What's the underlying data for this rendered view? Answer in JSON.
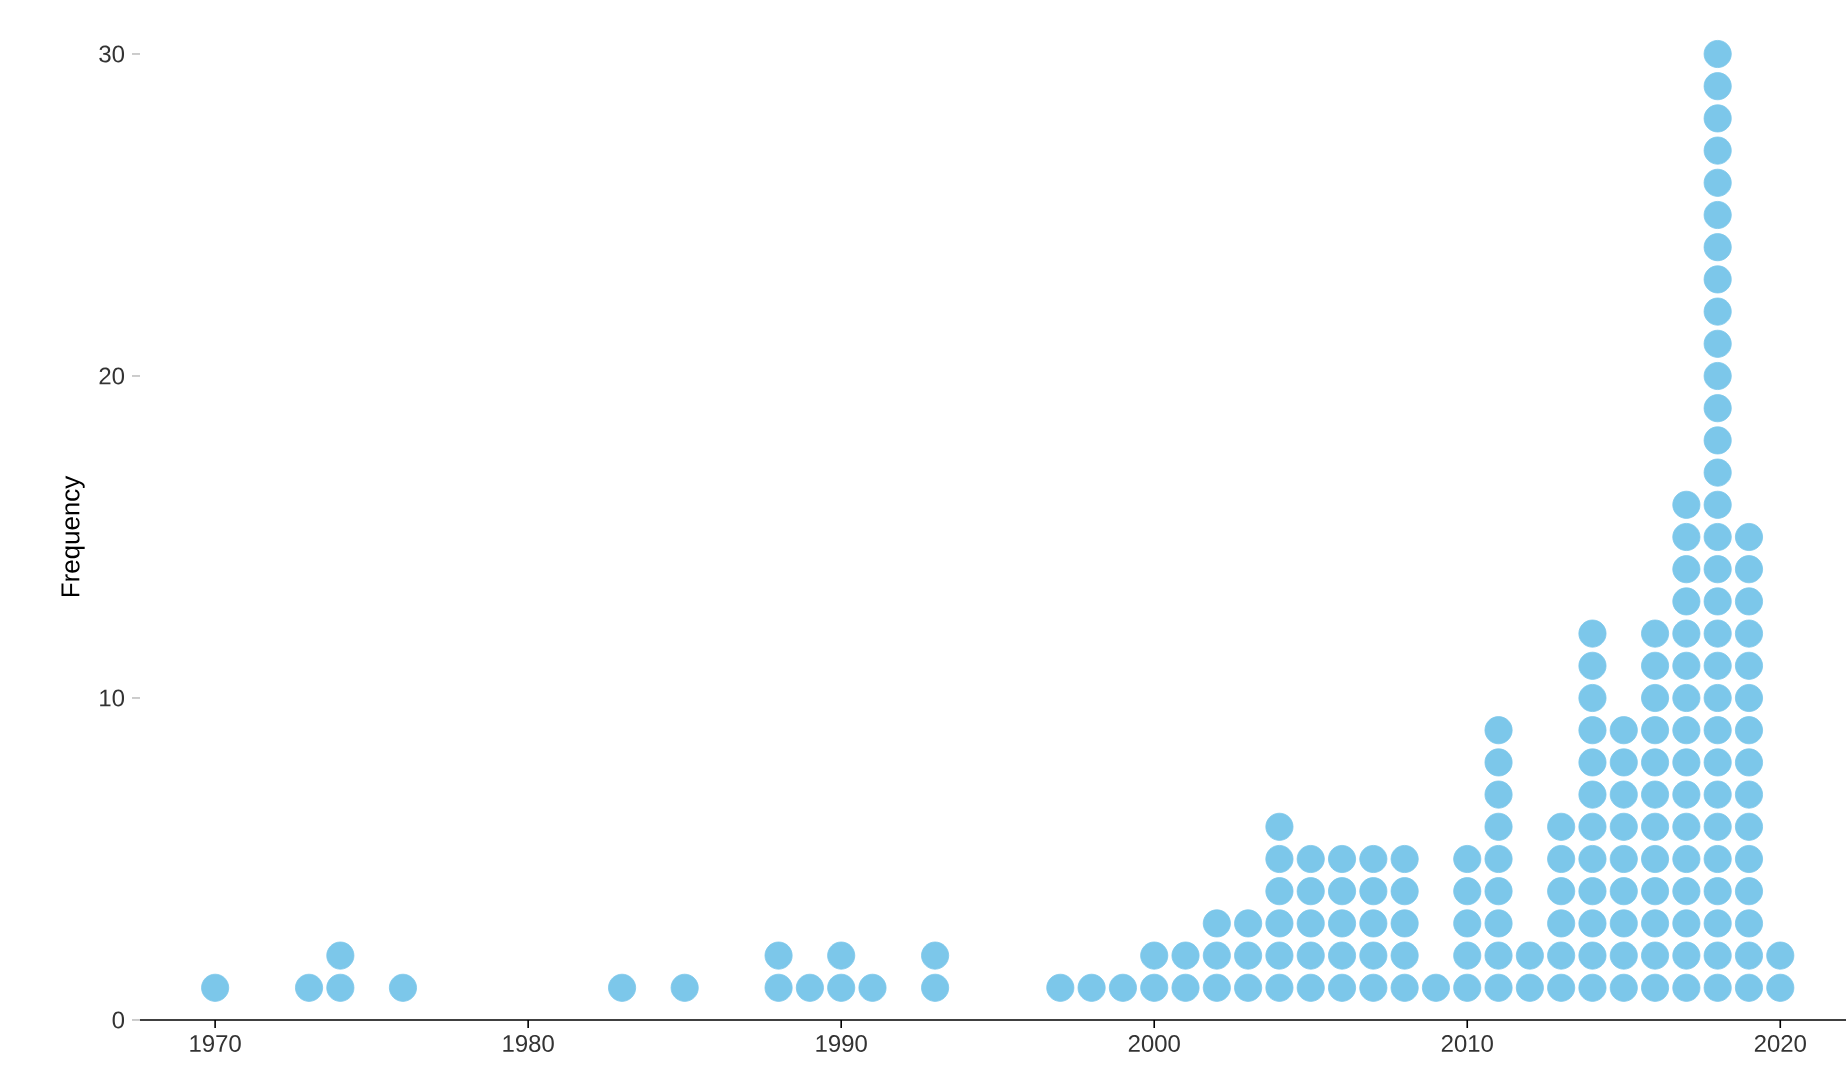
{
  "chart_data": {
    "type": "scatter",
    "ylabel": "Frequency",
    "color": "#7cc7ea",
    "marker": "circle",
    "grid": false,
    "xlim": [
      1967.6,
      2022.1
    ],
    "ylim": [
      0,
      30
    ],
    "xticks": [
      1970,
      1980,
      1990,
      2000,
      2010,
      2020
    ],
    "yticks": [
      0,
      10,
      20,
      30
    ],
    "x": [
      1970,
      1973,
      1974,
      1974,
      1976,
      1983,
      1985,
      1988,
      1988,
      1989,
      1990,
      1990,
      1991,
      1993,
      1993,
      1997,
      1998,
      1999,
      2000,
      2000,
      2001,
      2001,
      2002,
      2002,
      2002,
      2003,
      2003,
      2003,
      2004,
      2004,
      2004,
      2004,
      2004,
      2004,
      2005,
      2005,
      2005,
      2005,
      2005,
      2006,
      2006,
      2006,
      2006,
      2006,
      2007,
      2007,
      2007,
      2007,
      2007,
      2008,
      2008,
      2008,
      2008,
      2008,
      2009,
      2010,
      2010,
      2010,
      2010,
      2010,
      2011,
      2011,
      2011,
      2011,
      2011,
      2011,
      2011,
      2011,
      2011,
      2012,
      2012,
      2013,
      2013,
      2013,
      2013,
      2013,
      2013,
      2014,
      2014,
      2014,
      2014,
      2014,
      2014,
      2014,
      2014,
      2014,
      2014,
      2014,
      2014,
      2015,
      2015,
      2015,
      2015,
      2015,
      2015,
      2015,
      2015,
      2015,
      2016,
      2016,
      2016,
      2016,
      2016,
      2016,
      2016,
      2016,
      2016,
      2016,
      2016,
      2016,
      2017,
      2017,
      2017,
      2017,
      2017,
      2017,
      2017,
      2017,
      2017,
      2017,
      2017,
      2017,
      2017,
      2017,
      2017,
      2017,
      2018,
      2018,
      2018,
      2018,
      2018,
      2018,
      2018,
      2018,
      2018,
      2018,
      2018,
      2018,
      2018,
      2018,
      2018,
      2018,
      2018,
      2018,
      2018,
      2018,
      2018,
      2018,
      2018,
      2018,
      2018,
      2018,
      2018,
      2018,
      2018,
      2018,
      2019,
      2019,
      2019,
      2019,
      2019,
      2019,
      2019,
      2019,
      2019,
      2019,
      2019,
      2019,
      2019,
      2019,
      2019,
      2020,
      2020
    ],
    "values": [
      1,
      1,
      1,
      2,
      1,
      1,
      1,
      1,
      2,
      1,
      1,
      2,
      1,
      1,
      2,
      1,
      1,
      1,
      1,
      2,
      1,
      2,
      1,
      2,
      3,
      1,
      2,
      3,
      1,
      2,
      3,
      4,
      5,
      6,
      1,
      2,
      3,
      4,
      5,
      1,
      2,
      3,
      4,
      5,
      1,
      2,
      3,
      4,
      5,
      1,
      2,
      3,
      4,
      5,
      1,
      1,
      2,
      3,
      4,
      5,
      1,
      2,
      3,
      4,
      5,
      6,
      7,
      8,
      9,
      1,
      2,
      1,
      2,
      3,
      4,
      5,
      6,
      1,
      2,
      3,
      4,
      5,
      6,
      7,
      8,
      9,
      10,
      11,
      12,
      1,
      2,
      3,
      4,
      5,
      6,
      7,
      8,
      9,
      1,
      2,
      3,
      4,
      5,
      6,
      7,
      8,
      9,
      10,
      11,
      12,
      1,
      2,
      3,
      4,
      5,
      6,
      7,
      8,
      9,
      10,
      11,
      12,
      13,
      14,
      15,
      16,
      1,
      2,
      3,
      4,
      5,
      6,
      7,
      8,
      9,
      10,
      11,
      12,
      13,
      14,
      15,
      16,
      17,
      18,
      19,
      20,
      21,
      22,
      23,
      24,
      25,
      26,
      27,
      28,
      29,
      30,
      1,
      2,
      3,
      4,
      5,
      6,
      7,
      8,
      9,
      10,
      11,
      12,
      13,
      14,
      15,
      1,
      2
    ]
  }
}
